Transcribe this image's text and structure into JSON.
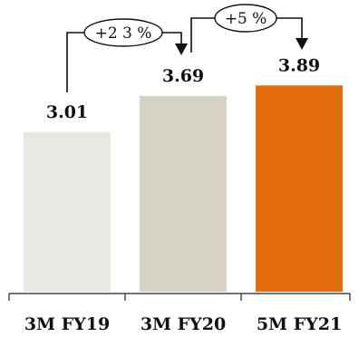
{
  "chart_data": {
    "type": "bar",
    "title": "",
    "xlabel": "",
    "ylabel": "",
    "ylim": [
      0,
      4.4
    ],
    "grid": false,
    "legend": "none",
    "categories": [
      "3M FY19",
      "3M FY20",
      "5M FY21"
    ],
    "values": [
      3.01,
      3.69,
      3.89
    ],
    "value_labels": [
      "3.01",
      "3.69",
      "3.89"
    ],
    "colors": [
      "#e8e7e1",
      "#d6d2c6",
      "#e36d0d"
    ],
    "annotations": [
      {
        "from": 0,
        "to": 1,
        "text": "+2 3 %"
      },
      {
        "from": 1,
        "to": 2,
        "text": "+5 %"
      }
    ]
  }
}
